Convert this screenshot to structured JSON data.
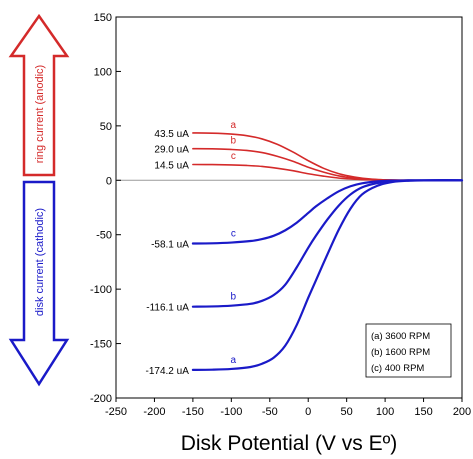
{
  "chart_data": {
    "type": "line",
    "xlabel": "Disk Potential (V vs Eº)",
    "ylabel": "",
    "xlim": [
      -250,
      200
    ],
    "ylim": [
      -200,
      150
    ],
    "x_ticks": [
      "-250",
      "-200",
      "-150",
      "-100",
      "-50",
      "0",
      "50",
      "100",
      "150",
      "200"
    ],
    "y_ticks": [
      "150",
      "100",
      "50",
      "0",
      "-50",
      "-100",
      "-150",
      "-200"
    ],
    "ring_arrow_label": "ring current (anodic)",
    "disk_arrow_label": "disk current (cathodic)",
    "colors": {
      "ring": "#d42a2a",
      "disk": "#1a1ac8",
      "zero_line": "#9a9a9a"
    },
    "legend": {
      "entries": [
        "(a) 3600 RPM",
        "(b) 1600 RPM",
        "(c) 400 RPM"
      ]
    },
    "series": [
      {
        "group": "ring",
        "letter": "a",
        "plateau_label": "43.5 uA",
        "x": [
          -150,
          -125,
          -100,
          -80,
          -60,
          -40,
          -20,
          0,
          20,
          40,
          60,
          80,
          100,
          120,
          150,
          200
        ],
        "y": [
          43.5,
          43.3,
          42.5,
          41,
          38,
          33,
          26,
          18,
          11,
          6,
          3,
          1.2,
          0.4,
          0.1,
          0,
          0
        ]
      },
      {
        "group": "ring",
        "letter": "b",
        "plateau_label": "29.0 uA",
        "x": [
          -150,
          -125,
          -100,
          -80,
          -60,
          -40,
          -20,
          0,
          20,
          40,
          60,
          80,
          100,
          120,
          150,
          200
        ],
        "y": [
          29,
          28.9,
          28.3,
          27.4,
          25.5,
          22,
          17.5,
          12,
          7.5,
          4,
          2,
          0.8,
          0.3,
          0.1,
          0,
          0
        ]
      },
      {
        "group": "ring",
        "letter": "c",
        "plateau_label": "14.5 uA",
        "x": [
          -150,
          -125,
          -100,
          -80,
          -60,
          -40,
          -20,
          0,
          20,
          40,
          60,
          80,
          100,
          120,
          150,
          200
        ],
        "y": [
          14.5,
          14.4,
          14.1,
          13.6,
          12.7,
          11,
          8.8,
          6,
          3.8,
          2,
          1,
          0.4,
          0.1,
          0,
          0,
          0
        ]
      },
      {
        "group": "disk",
        "letter": "a",
        "plateau_label": "-174.2 uA",
        "x": [
          -150,
          -125,
          -100,
          -75,
          -60,
          -45,
          -30,
          -15,
          0,
          10,
          25,
          40,
          55,
          70,
          90,
          110,
          130,
          160,
          200
        ],
        "y": [
          -174.2,
          -174,
          -173.3,
          -171.5,
          -168.5,
          -163,
          -152,
          -133,
          -108,
          -92,
          -68,
          -45,
          -26,
          -13,
          -5,
          -1.5,
          -0.4,
          0,
          0
        ]
      },
      {
        "group": "disk",
        "letter": "b",
        "plateau_label": "-116.1 uA",
        "x": [
          -150,
          -125,
          -100,
          -75,
          -60,
          -45,
          -30,
          -15,
          0,
          10,
          25,
          40,
          55,
          70,
          90,
          110,
          130,
          160,
          200
        ],
        "y": [
          -116.1,
          -115.9,
          -115.2,
          -113.5,
          -110.7,
          -105.5,
          -96,
          -80,
          -62,
          -51,
          -36,
          -23,
          -13,
          -6.5,
          -2.5,
          -0.8,
          -0.2,
          0,
          0
        ]
      },
      {
        "group": "disk",
        "letter": "c",
        "plateau_label": "-58.1 uA",
        "x": [
          -150,
          -125,
          -100,
          -75,
          -60,
          -45,
          -30,
          -15,
          0,
          10,
          25,
          40,
          55,
          70,
          90,
          110,
          130,
          160,
          200
        ],
        "y": [
          -58.1,
          -57.9,
          -57.2,
          -55.8,
          -54,
          -51,
          -46,
          -39,
          -30,
          -24,
          -16.5,
          -10,
          -5.5,
          -2.8,
          -1,
          -0.3,
          -0.1,
          0,
          0
        ]
      }
    ]
  }
}
